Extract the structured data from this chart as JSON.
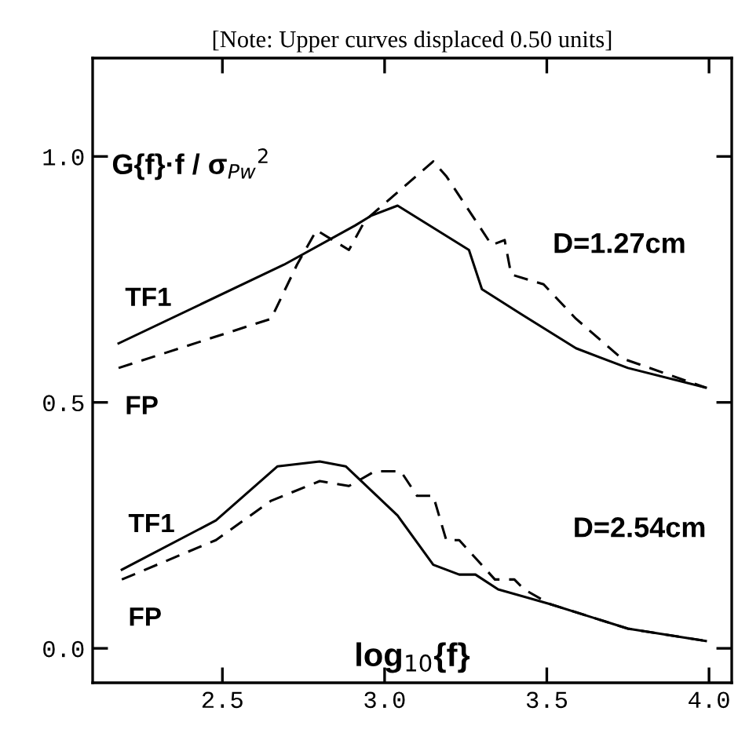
{
  "chart_data": {
    "type": "line",
    "title": "[Note: Upper curves displaced 0.50 units]",
    "xlabel": "log$_{10}${f}",
    "ylabel": "G{f}·f / σ$_{Pw}$$^{2}$",
    "xlim": [
      2.1,
      4.07
    ],
    "ylim": [
      -0.07,
      1.2
    ],
    "xticks": [
      2.5,
      {
        "value": 3.0,
        "label": "3.0"
      },
      3.5,
      {
        "value": 4.0,
        "label": "4.0"
      }
    ],
    "yticks": [
      {
        "value": 0.0,
        "label": "0.0"
      },
      {
        "value": 0.5,
        "label": "0.5"
      },
      {
        "value": 1.0,
        "label": "1.0"
      }
    ],
    "grid": false,
    "legend": false,
    "marker": "none",
    "series": [
      {
        "name": "TF1",
        "color": "#000000",
        "line_style": "solid",
        "x": [
          2.18,
          2.69,
          2.91,
          2.96,
          3.04,
          3.26,
          3.3,
          3.42,
          3.59,
          3.75,
          3.99
        ],
        "values": [
          0.62,
          0.78,
          0.86,
          0.88,
          0.9,
          0.81,
          0.73,
          0.68,
          0.61,
          0.57,
          0.53
        ]
      },
      {
        "name": "FP",
        "color": "#000000",
        "line_style": "dashed",
        "x": [
          2.18,
          2.65,
          2.73,
          2.79,
          2.84,
          2.89,
          2.94,
          3.15,
          3.19,
          3.33,
          3.37,
          3.39,
          3.49,
          3.59,
          3.73,
          3.99
        ],
        "values": [
          0.57,
          0.67,
          0.78,
          0.85,
          0.83,
          0.81,
          0.87,
          0.99,
          0.96,
          0.82,
          0.83,
          0.76,
          0.74,
          0.67,
          0.59,
          0.53
        ]
      },
      {
        "name": "TF1",
        "color": "#000000",
        "line_style": "solid",
        "x": [
          2.19,
          2.48,
          2.67,
          2.8,
          2.88,
          3.04,
          3.15,
          3.23,
          3.28,
          3.35,
          3.51,
          3.75,
          3.99
        ],
        "values": [
          0.16,
          0.26,
          0.37,
          0.38,
          0.37,
          0.27,
          0.17,
          0.15,
          0.15,
          0.12,
          0.09,
          0.04,
          0.015
        ]
      },
      {
        "name": "FP",
        "color": "#000000",
        "line_style": "dashed",
        "x": [
          2.19,
          2.48,
          2.65,
          2.8,
          2.89,
          2.97,
          3.05,
          3.1,
          3.15,
          3.19,
          3.23,
          3.34,
          3.4,
          3.43,
          3.51,
          3.75,
          3.99
        ],
        "values": [
          0.14,
          0.22,
          0.3,
          0.34,
          0.33,
          0.36,
          0.36,
          0.31,
          0.31,
          0.22,
          0.22,
          0.14,
          0.14,
          0.12,
          0.09,
          0.04,
          0.015
        ]
      }
    ],
    "annotations": [
      "D=1.27cm",
      "D=2.54cm"
    ]
  }
}
